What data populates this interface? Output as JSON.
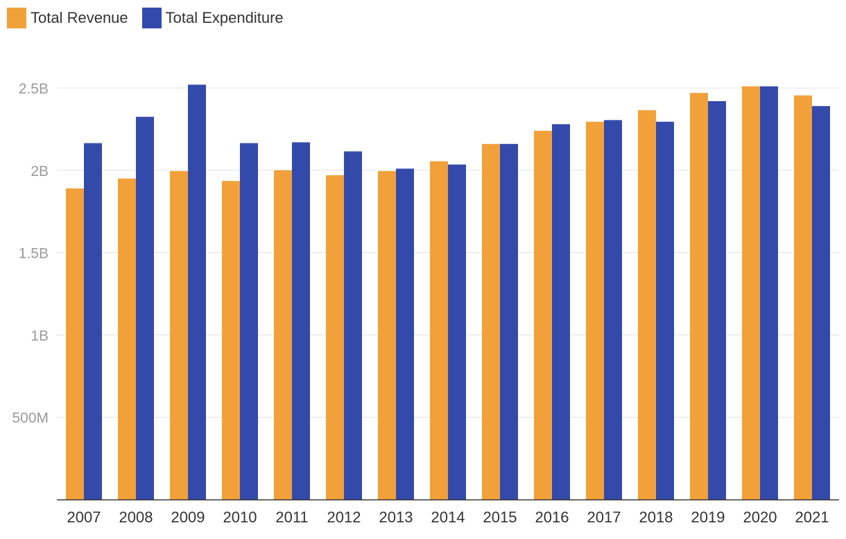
{
  "chart_data": {
    "type": "bar",
    "categories": [
      "2007",
      "2008",
      "2009",
      "2010",
      "2011",
      "2012",
      "2013",
      "2014",
      "2015",
      "2016",
      "2017",
      "2018",
      "2019",
      "2020",
      "2021"
    ],
    "series": [
      {
        "name": "Total Revenue",
        "color": "#F2A13A",
        "values": [
          1.89,
          1.95,
          1.995,
          1.935,
          2.0,
          1.97,
          1.995,
          2.055,
          2.16,
          2.24,
          2.295,
          2.365,
          2.47,
          2.51,
          2.455
        ]
      },
      {
        "name": "Total Expenditure",
        "color": "#344AAB",
        "values": [
          2.165,
          2.325,
          2.52,
          2.165,
          2.17,
          2.115,
          2.01,
          2.035,
          2.16,
          2.28,
          2.305,
          2.295,
          2.42,
          2.51,
          2.39
        ]
      }
    ],
    "value_unit": "billions",
    "y_ticks": [
      {
        "value": 0.5,
        "label": "500M"
      },
      {
        "value": 1.0,
        "label": "1B"
      },
      {
        "value": 1.5,
        "label": "1.5B"
      },
      {
        "value": 2.0,
        "label": "2B"
      },
      {
        "value": 2.5,
        "label": "2.5B"
      }
    ],
    "ylim": [
      0,
      2.5
    ],
    "grid": true,
    "legend_position": "top-left",
    "title": "",
    "xlabel": "",
    "ylabel": ""
  }
}
